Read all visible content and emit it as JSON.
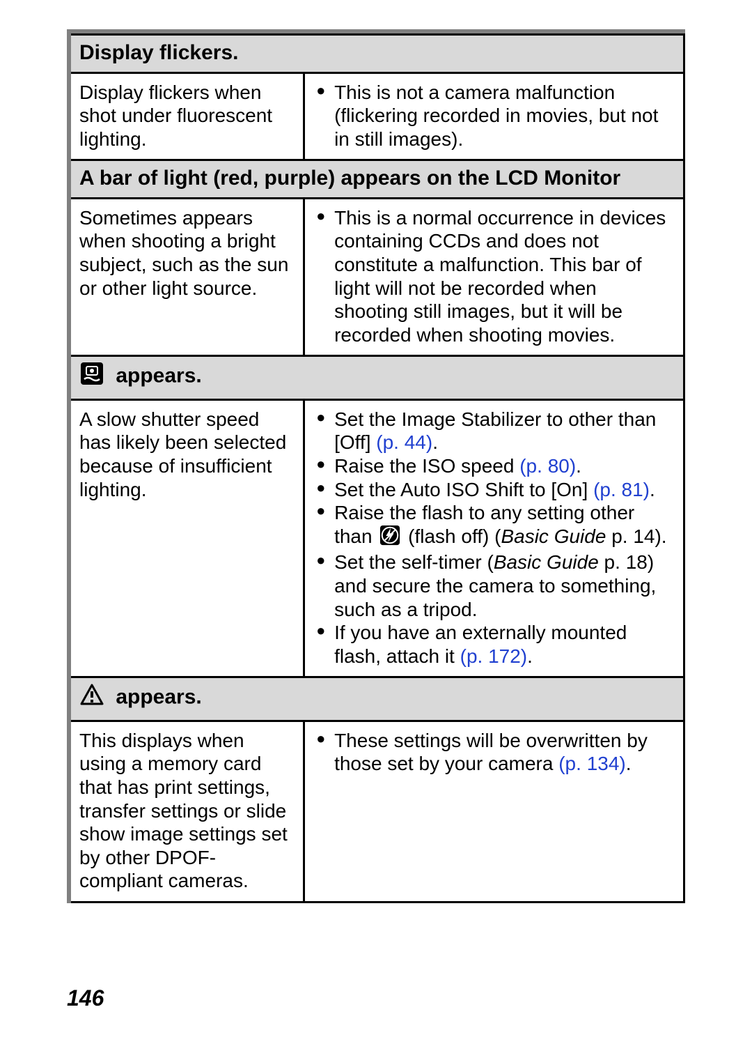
{
  "page_number": "146",
  "colors": {
    "header_bg": "#d9d9d9",
    "border": "#000000",
    "frame_shadow": "#808080",
    "link": "#2040d0",
    "text": "#000000",
    "bg": "#ffffff"
  },
  "typography": {
    "body_fontsize_pt": 21,
    "header_fontsize_pt": 22,
    "header_weight": "900",
    "font_family": "Arial, Helvetica, sans-serif"
  },
  "sections": [
    {
      "id": "flicker",
      "title": "Display flickers.",
      "icon": null,
      "cause": "Display flickers when shot under fluorescent lighting.",
      "remedies": [
        {
          "parts": [
            {
              "t": "text",
              "v": "This is not a camera malfunction (flickering recorded in movies, but not in still images)."
            }
          ]
        }
      ]
    },
    {
      "id": "lightbar",
      "title": "A bar of light (red, purple) appears on the LCD Monitor",
      "icon": null,
      "cause": "Sometimes appears when shooting a bright subject, such as the sun or other light source.",
      "remedies": [
        {
          "parts": [
            {
              "t": "text",
              "v": "This is a normal occurrence in devices containing CCDs and does not constitute a malfunction. This bar of light will not be recorded when shooting still images, but it will be recorded when shooting movies."
            }
          ]
        }
      ]
    },
    {
      "id": "shake",
      "title": " appears.",
      "icon": "camera-shake-icon",
      "cause": "A slow shutter speed has likely been selected because of insufficient lighting.",
      "remedies": [
        {
          "parts": [
            {
              "t": "text",
              "v": "Set the Image Stabilizer to other than [Off] "
            },
            {
              "t": "ref",
              "v": "(p. 44)"
            },
            {
              "t": "text",
              "v": "."
            }
          ]
        },
        {
          "parts": [
            {
              "t": "text",
              "v": "Raise the ISO speed "
            },
            {
              "t": "ref",
              "v": "(p. 80)"
            },
            {
              "t": "text",
              "v": "."
            }
          ]
        },
        {
          "parts": [
            {
              "t": "text",
              "v": "Set the Auto ISO Shift to [On] "
            },
            {
              "t": "ref",
              "v": "(p. 81)"
            },
            {
              "t": "text",
              "v": "."
            }
          ]
        },
        {
          "parts": [
            {
              "t": "text",
              "v": "Raise the flash to any setting other than "
            },
            {
              "t": "icon",
              "v": "flash-off-icon"
            },
            {
              "t": "text",
              "v": " (flash off) ("
            },
            {
              "t": "italic",
              "v": "Basic Guide"
            },
            {
              "t": "text",
              "v": " p. 14)."
            }
          ]
        },
        {
          "parts": [
            {
              "t": "text",
              "v": "Set the self-timer ("
            },
            {
              "t": "italic",
              "v": "Basic Guide"
            },
            {
              "t": "text",
              "v": " p. 18) and secure the camera to something, such as a tripod."
            }
          ]
        },
        {
          "parts": [
            {
              "t": "text",
              "v": "If you have an externally mounted flash, attach it "
            },
            {
              "t": "ref",
              "v": "(p. 172)"
            },
            {
              "t": "text",
              "v": "."
            }
          ]
        }
      ]
    },
    {
      "id": "dpof",
      "title": " appears.",
      "icon": "warning-icon",
      "cause": "This displays when using a memory card that has print settings, transfer settings or slide show image settings set by other DPOF-compliant cameras.",
      "remedies": [
        {
          "parts": [
            {
              "t": "text",
              "v": "These settings will be overwritten by those set by your camera "
            },
            {
              "t": "ref",
              "v": "(p. 134)"
            },
            {
              "t": "text",
              "v": "."
            }
          ]
        }
      ]
    }
  ]
}
